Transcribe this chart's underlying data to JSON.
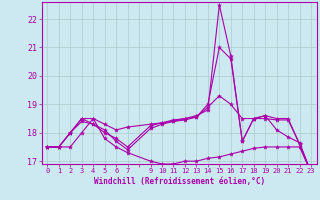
{
  "xlabel": "Windchill (Refroidissement éolien,°C)",
  "background_color": "#cce8f0",
  "line_color": "#aa00aa",
  "grid_color": "#aacccc",
  "x_values": [
    0,
    1,
    2,
    3,
    4,
    5,
    6,
    7,
    9,
    10,
    11,
    12,
    13,
    14,
    15,
    16,
    17,
    18,
    19,
    20,
    21,
    22,
    23
  ],
  "line1": [
    17.5,
    17.5,
    17.5,
    18.0,
    18.5,
    17.8,
    17.5,
    17.3,
    17.0,
    16.9,
    16.9,
    17.0,
    17.0,
    17.1,
    17.15,
    17.25,
    17.35,
    17.45,
    17.5,
    17.5,
    17.5,
    17.5,
    16.6
  ],
  "line2": [
    17.5,
    17.5,
    18.0,
    18.5,
    18.5,
    18.3,
    18.1,
    18.2,
    18.3,
    18.35,
    18.4,
    18.5,
    18.6,
    18.8,
    22.5,
    20.7,
    17.7,
    18.5,
    18.6,
    18.1,
    17.85,
    17.65,
    16.6
  ],
  "line3": [
    17.5,
    17.5,
    18.0,
    18.5,
    18.3,
    18.1,
    17.7,
    17.4,
    18.15,
    18.3,
    18.4,
    18.45,
    18.55,
    19.0,
    21.0,
    20.6,
    17.7,
    18.5,
    18.5,
    18.45,
    18.45,
    17.6,
    16.6
  ],
  "line4": [
    17.5,
    17.5,
    18.0,
    18.4,
    18.3,
    18.0,
    17.8,
    17.5,
    18.25,
    18.35,
    18.45,
    18.5,
    18.55,
    18.9,
    19.3,
    19.0,
    18.5,
    18.5,
    18.6,
    18.5,
    18.5,
    17.6,
    16.6
  ],
  "ylim": [
    16.9,
    22.6
  ],
  "yticks": [
    17,
    18,
    19,
    20,
    21,
    22
  ],
  "xlim": [
    -0.5,
    23.5
  ],
  "xtick_labels": [
    "0",
    "1",
    "2",
    "3",
    "4",
    "5",
    "6",
    "7",
    "",
    "9",
    "10",
    "11",
    "12",
    "13",
    "14",
    "15",
    "16",
    "17",
    "18",
    "19",
    "20",
    "21",
    "22",
    "23"
  ]
}
